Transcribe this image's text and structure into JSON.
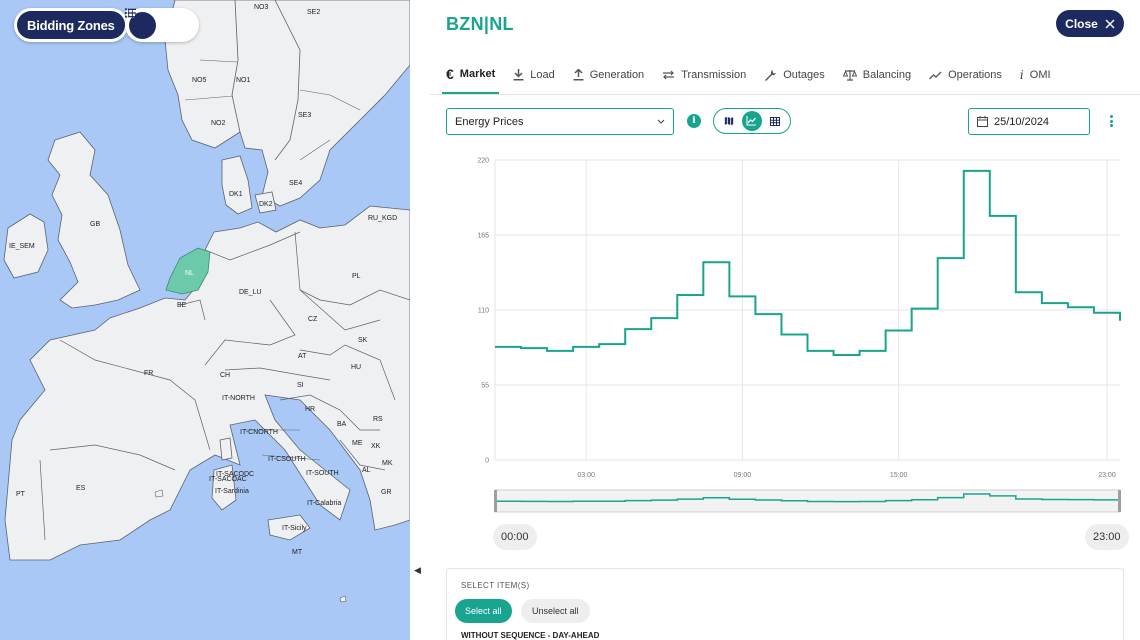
{
  "map": {
    "bidding_zones_label": "Bidding Zones",
    "view_icons": [
      "map-icon",
      "list-icon"
    ],
    "zones": [
      "NO3",
      "SE2",
      "NO5",
      "NO1",
      "SE3",
      "NO2",
      "SE4",
      "DK1",
      "DK2",
      "GB",
      "IE_SEM",
      "NL",
      "BE",
      "DE_LU",
      "PL",
      "RU_KGD",
      "FR",
      "CZ",
      "SK",
      "AT",
      "HU",
      "CH",
      "SI",
      "IT-NORTH",
      "HR",
      "RS",
      "BA",
      "ME",
      "XK",
      "IT-CNORTH",
      "IT-CSOUTH",
      "MK",
      "AL",
      "IT-SACODC",
      "IT-SACOAC",
      "IT-SOUTH",
      "IT-Sardinia",
      "IT-Calabria",
      "GR",
      "ES",
      "PT",
      "IT-Sicily",
      "MT"
    ],
    "colors": {
      "sea": "#a9c8f5",
      "land": "#eef0f2",
      "border": "#5b6270",
      "selected": "#6cc9a9"
    }
  },
  "panel": {
    "title": "BZN|NL",
    "close_label": "Close",
    "tabs": [
      {
        "label": "Market",
        "icon": "euro-icon",
        "active": true
      },
      {
        "label": "Load",
        "icon": "download-icon",
        "active": false
      },
      {
        "label": "Generation",
        "icon": "upload-icon",
        "active": false
      },
      {
        "label": "Transmission",
        "icon": "swap-arrows-icon",
        "active": false
      },
      {
        "label": "Outages",
        "icon": "wrench-icon",
        "active": false
      },
      {
        "label": "Balancing",
        "icon": "scale-icon",
        "active": false
      },
      {
        "label": "Operations",
        "icon": "trend-icon",
        "active": false
      },
      {
        "label": "OMI",
        "icon": "info-italic-icon",
        "active": false
      }
    ],
    "dataset_select": "Energy Prices",
    "date": "25/10/2024",
    "start_time": "00:00",
    "end_time": "23:00",
    "select_heading": "SELECT ITEM(S)",
    "select_all": "Select all",
    "unselect_all": "Unselect all",
    "sequence_label": "WITHOUT SEQUENCE - DAY-AHEAD"
  },
  "colors": {
    "accent": "#18a48f",
    "navy": "#1d2a5f"
  },
  "chart_data": {
    "type": "line",
    "step": true,
    "x": [
      "00:00",
      "01:00",
      "02:00",
      "03:00",
      "04:00",
      "05:00",
      "06:00",
      "07:00",
      "08:00",
      "09:00",
      "10:00",
      "11:00",
      "12:00",
      "13:00",
      "14:00",
      "15:00",
      "16:00",
      "17:00",
      "18:00",
      "19:00",
      "20:00",
      "21:00",
      "22:00",
      "23:00"
    ],
    "values": [
      83,
      82,
      80,
      83,
      85,
      96,
      104,
      121,
      145,
      120,
      107,
      92,
      80,
      77,
      80,
      95,
      111,
      148,
      212,
      179,
      123,
      115,
      112,
      108
    ],
    "yticks": [
      0,
      55,
      110,
      165,
      220
    ],
    "xticks": [
      "03:00",
      "09:00",
      "15:00",
      "23:00"
    ],
    "ylim": [
      0,
      220
    ],
    "grid": true,
    "line_color": "#18a48f"
  }
}
